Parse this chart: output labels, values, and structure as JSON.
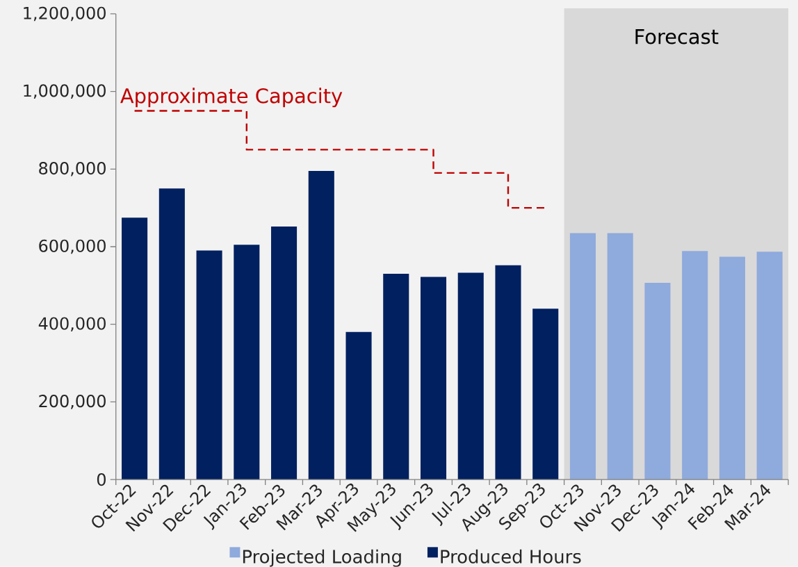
{
  "chart_data": {
    "type": "bar",
    "categories": [
      "Oct-22",
      "Nov-22",
      "Dec-22",
      "Jan-23",
      "Feb-23",
      "Mar-23",
      "Apr-23",
      "May-23",
      "Jun-23",
      "Jul-23",
      "Aug-23",
      "Sep-23",
      "Oct-23",
      "Nov-23",
      "Dec-23",
      "Jan-24",
      "Feb-24",
      "Mar-24"
    ],
    "series": [
      {
        "name": "Projected Loading",
        "color": "#8faadc",
        "values": [
          null,
          null,
          null,
          null,
          null,
          null,
          null,
          null,
          null,
          null,
          null,
          null,
          635000,
          635000,
          507000,
          589000,
          574000,
          587000
        ]
      },
      {
        "name": "Produced Hours",
        "color": "#002060",
        "values": [
          675000,
          750000,
          590000,
          605000,
          652000,
          795000,
          380000,
          530000,
          522000,
          533000,
          552000,
          440000,
          null,
          null,
          null,
          null,
          null,
          null
        ]
      },
      {
        "name": "Approximate Capacity",
        "type": "step",
        "color": "#c00000",
        "line_style": "dashed",
        "values": [
          950000,
          950000,
          950000,
          850000,
          850000,
          850000,
          850000,
          850000,
          790000,
          790000,
          700000,
          700000,
          null,
          null,
          null,
          null,
          null,
          null
        ]
      }
    ],
    "ylim": [
      0,
      1200000
    ],
    "yticks": [
      0,
      {
        "value": 200000,
        "label": "200,000"
      },
      {
        "value": 400000,
        "label": "400,000"
      },
      {
        "value": 600000,
        "label": "600,000"
      },
      {
        "value": 800000,
        "label": "800,000"
      },
      {
        "value": 1000000,
        "label": "1,000,000"
      },
      {
        "value": 1200000,
        "label": "1,200,000"
      }
    ],
    "bands": [
      {
        "axis": "x",
        "from": "Oct-23",
        "to": "Mar-24",
        "label": "Forecast",
        "color": "#d9d9d9"
      }
    ],
    "legend": "bottom"
  }
}
